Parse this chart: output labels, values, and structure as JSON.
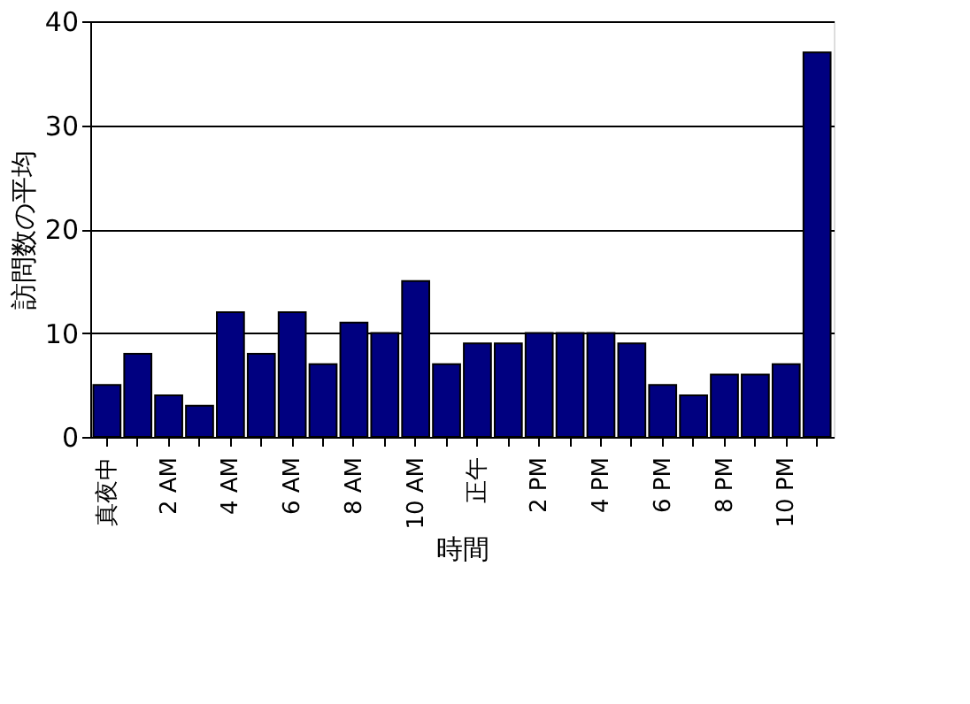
{
  "chart_data": {
    "type": "bar",
    "xlabel": "時間",
    "ylabel": "訪問数の平均",
    "categories": [
      "真夜中",
      null,
      "2 AM",
      null,
      "4 AM",
      null,
      "6 AM",
      null,
      "8 AM",
      null,
      "10 AM",
      null,
      "正午",
      null,
      "2 PM",
      null,
      "4 PM",
      null,
      "6 PM",
      null,
      "8 PM",
      null,
      "10 PM",
      null
    ],
    "values": [
      5,
      8,
      4,
      3,
      12,
      8,
      12,
      7,
      11,
      10,
      15,
      7,
      9,
      9,
      10,
      10,
      10,
      9,
      5,
      4,
      6,
      6,
      7,
      37
    ],
    "color": "#000080",
    "ylim": [
      0,
      40
    ],
    "yticks": [
      0,
      10,
      20,
      30,
      40
    ],
    "grid": "y"
  }
}
